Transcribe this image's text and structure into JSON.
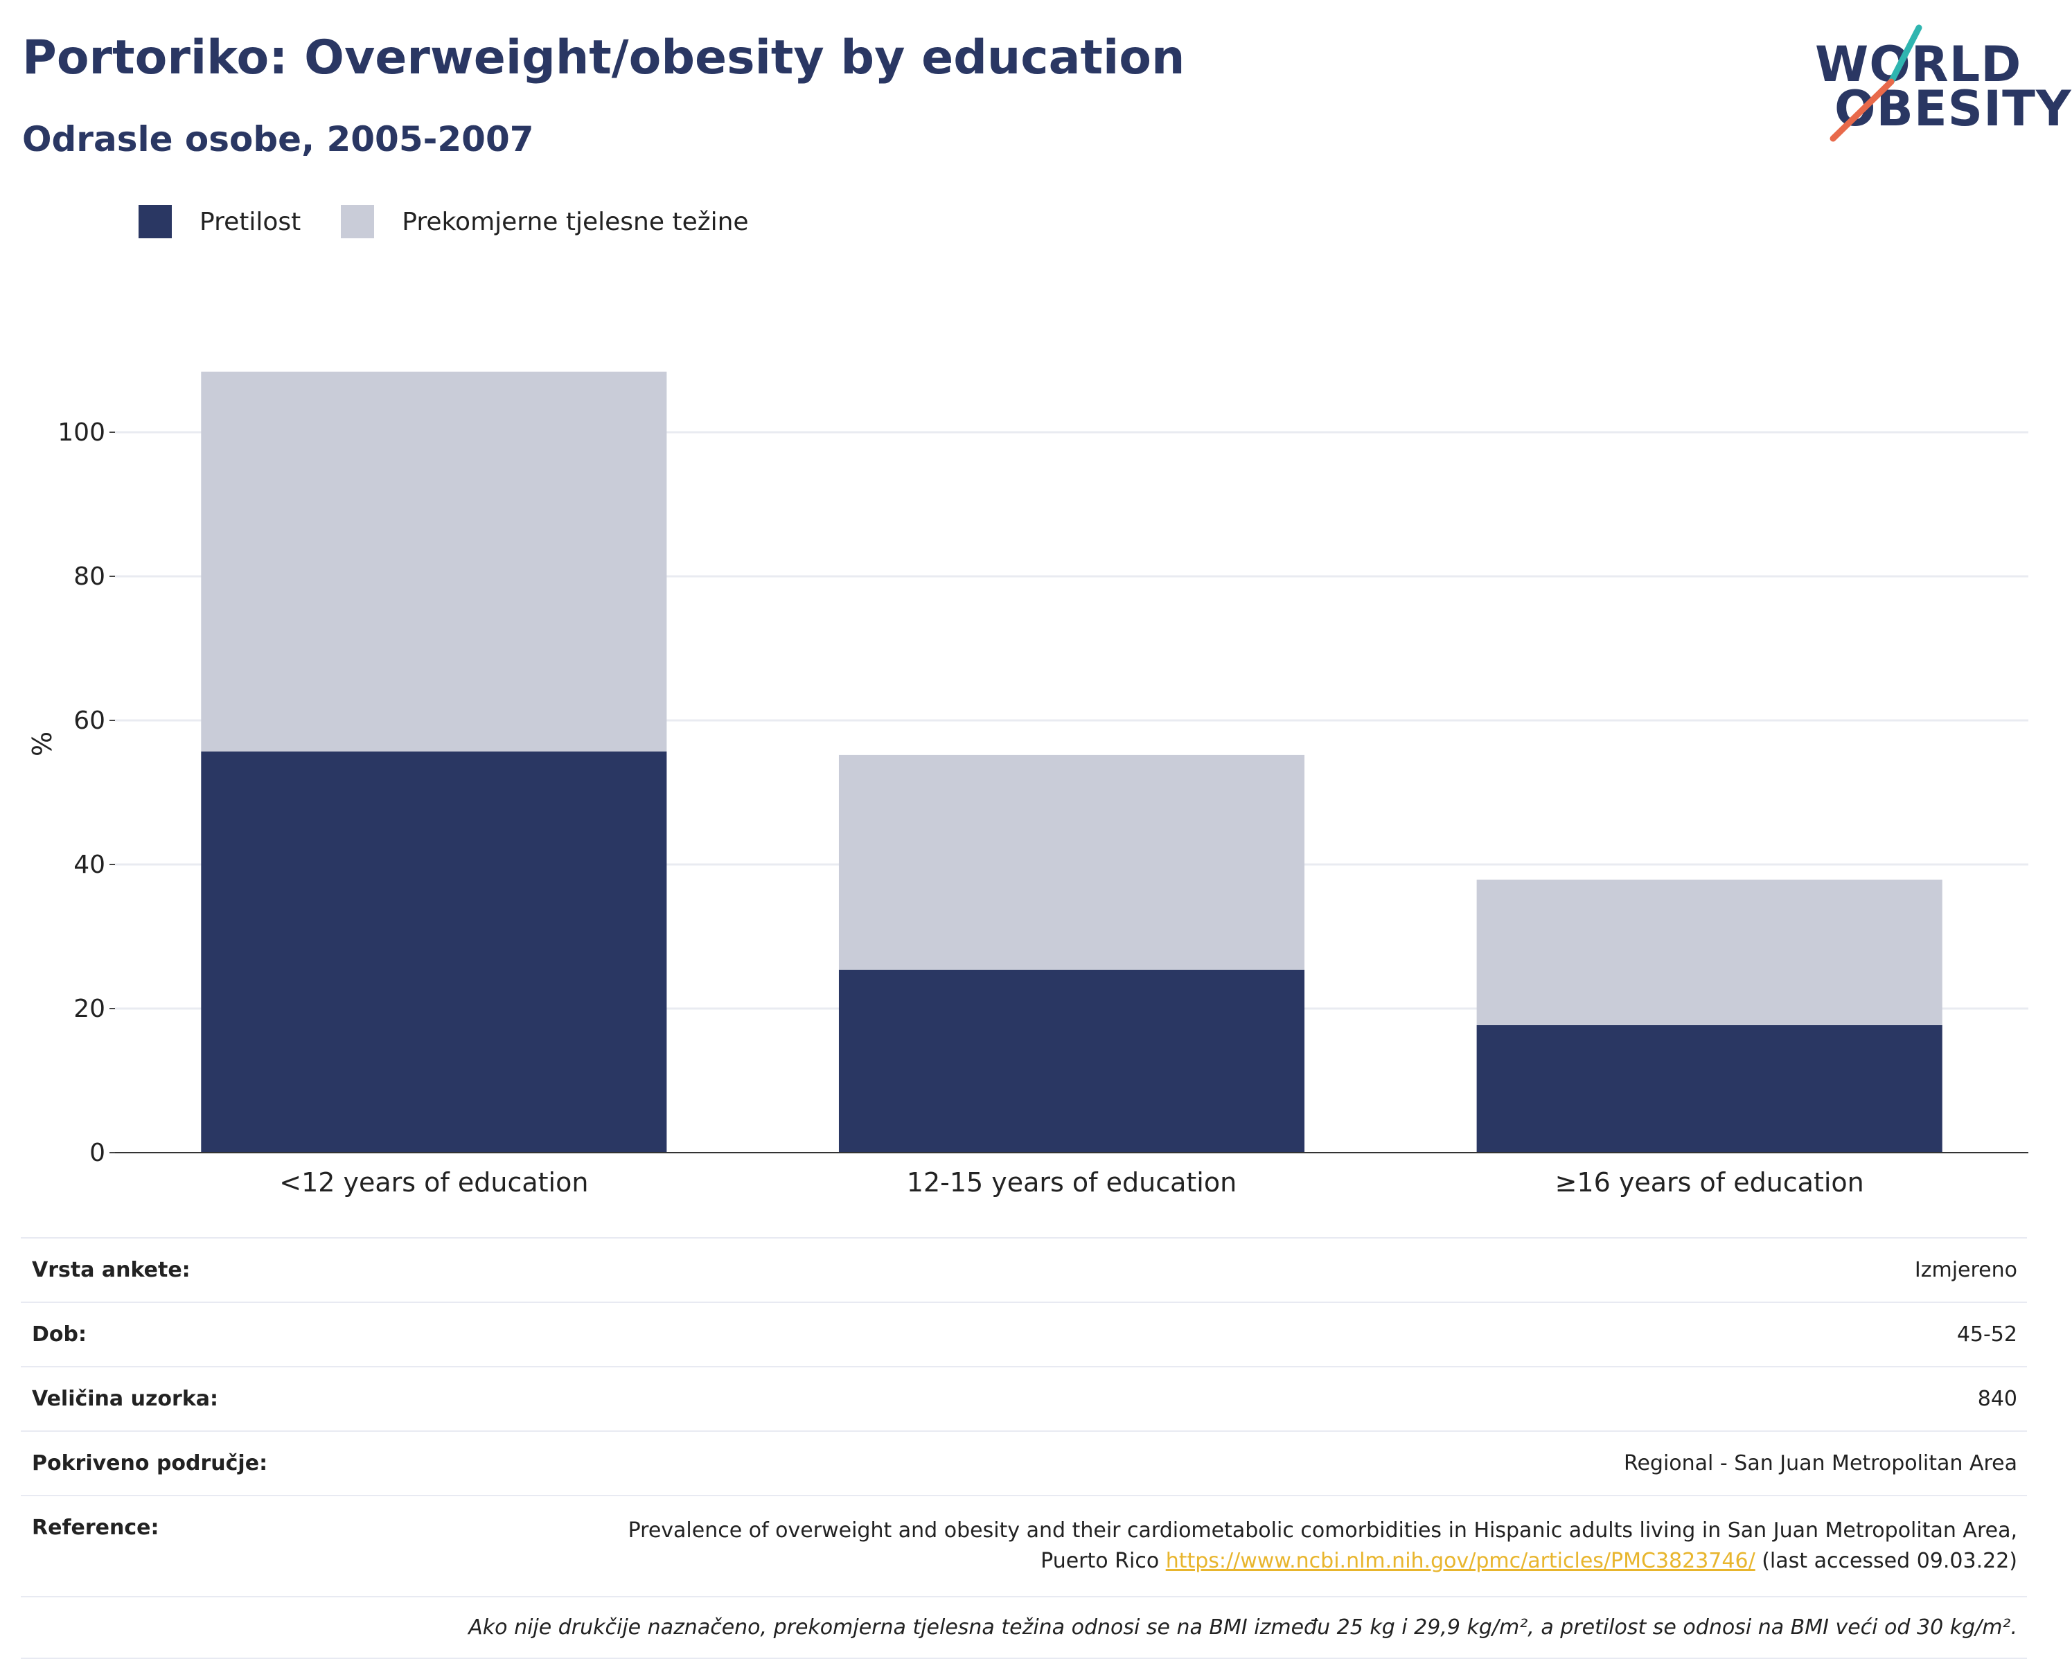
{
  "title": "Portoriko: Overweight/obesity by education",
  "subtitle": "Odrasle osobe, 2005-2007",
  "logo": {
    "line1": "WORLD",
    "line2": "OBESITY",
    "accent_teal": "#2fb5b0",
    "accent_red": "#e8694a"
  },
  "legend": [
    {
      "label": "Pretilost",
      "color": "#2a3763"
    },
    {
      "label": "Prekomjerne tjelesne težine",
      "color": "#c9ccd8"
    }
  ],
  "chart_data": {
    "type": "bar",
    "stacked": true,
    "categories": [
      "<12 years of education",
      "12-15 years of education",
      "≥16 years of education"
    ],
    "series": [
      {
        "name": "Pretilost",
        "color": "#2a3763",
        "values": [
          55.7,
          25.4,
          17.7
        ]
      },
      {
        "name": "Prekomjerne tjelesne težine",
        "color": "#c9ccd8",
        "values": [
          52.7,
          29.8,
          20.2
        ]
      }
    ],
    "ylabel": "%",
    "ylim": [
      0,
      110
    ],
    "yticks": [
      0,
      20,
      40,
      60,
      80,
      100
    ],
    "grid": true,
    "legend_position": "top-left"
  },
  "info": {
    "rows": [
      {
        "key": "Vrsta ankete:",
        "value": "Izmjereno"
      },
      {
        "key": "Dob:",
        "value": "45-52"
      },
      {
        "key": "Veličina uzorka:",
        "value": "840"
      },
      {
        "key": "Pokriveno područje:",
        "value": "Regional - San Juan Metropolitan Area"
      }
    ],
    "reference": {
      "key": "Reference:",
      "line1": "Prevalence of overweight and obesity and their cardiometabolic comorbidities in Hispanic adults living in San Juan Metropolitan Area,",
      "line2_prefix": "Puerto Rico ",
      "link": "https://www.ncbi.nlm.nih.gov/pmc/articles/PMC3823746/",
      "line2_suffix": " (last accessed 09.03.22)"
    },
    "note": "Ako nije drukčije naznačeno, prekomjerna tjelesna težina odnosi se na BMI između 25 kg i 29,9 kg/m², a pretilost se odnosi na BMI veći od 30 kg/m²."
  }
}
